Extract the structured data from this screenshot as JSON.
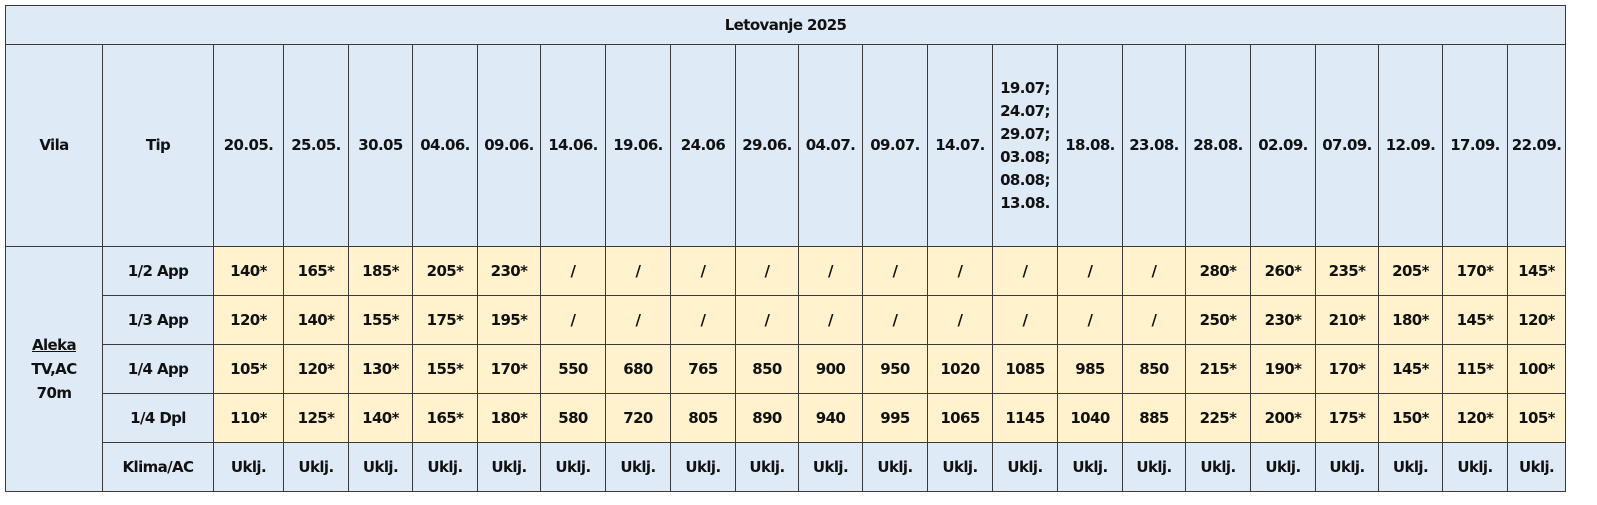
{
  "table": {
    "title": "Letovanje 2025",
    "headers": [
      "Vila",
      "Tip",
      "20.05.",
      "25.05.",
      "30.05",
      "04.06.",
      "09.06.",
      "14.06.",
      "19.06.",
      "24.06",
      "29.06.",
      "04.07.",
      "09.07.",
      "14.07.",
      "19.07;\n24.07;\n29.07;\n03.08;\n08.08;\n13.08.",
      "18.08.",
      "23.08.",
      "28.08.",
      "02.09.",
      "07.09.",
      "12.09.",
      "17.09.",
      "22.09."
    ],
    "vila": {
      "name": "Aleka",
      "features": "TV,AC",
      "size": "70m"
    },
    "rows": [
      {
        "tip": "1/2 App",
        "cells": [
          "140*",
          "165*",
          "185*",
          "205*",
          "230*",
          "/",
          "/",
          "/",
          "/",
          "/",
          "/",
          "/",
          "/",
          "/",
          "/",
          "280*",
          "260*",
          "235*",
          "205*",
          "170*",
          "145*"
        ]
      },
      {
        "tip": "1/3 App",
        "cells": [
          "120*",
          "140*",
          "155*",
          "175*",
          "195*",
          "/",
          "/",
          "/",
          "/",
          "/",
          "/",
          "/",
          "/",
          "/",
          "/",
          "250*",
          "230*",
          "210*",
          "180*",
          "145*",
          "120*"
        ]
      },
      {
        "tip": "1/4 App",
        "cells": [
          "105*",
          "120*",
          "130*",
          "155*",
          "170*",
          "550",
          "680",
          "765",
          "850",
          "900",
          "950",
          "1020",
          "1085",
          "985",
          "850",
          "215*",
          "190*",
          "170*",
          "145*",
          "115*",
          "100*"
        ]
      },
      {
        "tip": "1/4 Dpl",
        "cells": [
          "110*",
          "125*",
          "140*",
          "165*",
          "180*",
          "580",
          "720",
          "805",
          "890",
          "940",
          "995",
          "1065",
          "1145",
          "1040",
          "885",
          "225*",
          "200*",
          "175*",
          "150*",
          "120*",
          "105*"
        ]
      },
      {
        "tip": "Klima/AC",
        "cells": [
          "Uklj.",
          "Uklj.",
          "Uklj.",
          "Uklj.",
          "Uklj.",
          "Uklj.",
          "Uklj.",
          "Uklj.",
          "Uklj.",
          "Uklj.",
          "Uklj.",
          "Uklj.",
          "Uklj.",
          "Uklj.",
          "Uklj.",
          "Uklj.",
          "Uklj.",
          "Uklj.",
          "Uklj.",
          "Uklj.",
          "Uklj."
        ]
      }
    ]
  }
}
